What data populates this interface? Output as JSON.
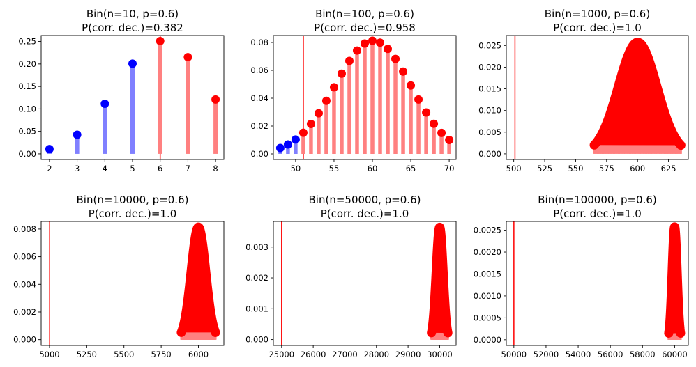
{
  "chart_data": [
    {
      "type": "scatter",
      "title": [
        "Bin(n=10, p=0.6)",
        "P(corr. dec.)=0.382"
      ],
      "n": 10,
      "p": 0.6,
      "threshold": 6,
      "point_range": [
        2,
        8
      ],
      "x_ticks": [
        2,
        3,
        4,
        5,
        6,
        7,
        8
      ],
      "y_ticks": [
        0.0,
        0.05,
        0.1,
        0.15,
        0.2,
        0.25
      ],
      "x_tick_labels": [
        "2",
        "3",
        "4",
        "5",
        "6",
        "7",
        "8"
      ],
      "y_tick_labels": [
        "0.00",
        "0.05",
        "0.10",
        "0.15",
        "0.20",
        "0.25"
      ],
      "xlim": [
        1.7,
        8.3
      ],
      "ylim": [
        -0.0125,
        0.2633
      ],
      "style": "points"
    },
    {
      "type": "scatter",
      "title": [
        "Bin(n=100, p=0.6)",
        "P(corr. dec.)=0.958"
      ],
      "n": 100,
      "p": 0.6,
      "threshold": 51,
      "point_range": [
        48,
        70
      ],
      "x_ticks": [
        50,
        55,
        60,
        65,
        70
      ],
      "y_ticks": [
        0.0,
        0.02,
        0.04,
        0.06,
        0.08
      ],
      "x_tick_labels": [
        "50",
        "55",
        "60",
        "65",
        "70"
      ],
      "y_tick_labels": [
        "0.00",
        "0.02",
        "0.04",
        "0.06",
        "0.08"
      ],
      "xlim": [
        47.1,
        70.9
      ],
      "ylim": [
        -0.004,
        0.085
      ],
      "style": "points"
    },
    {
      "type": "area",
      "title": [
        "Bin(n=1000, p=0.6)",
        "P(corr. dec.)=1.0"
      ],
      "n": 1000,
      "p": 0.6,
      "threshold": 501,
      "point_range": [
        565,
        635
      ],
      "x_ticks": [
        500,
        525,
        550,
        575,
        600,
        625
      ],
      "y_ticks": [
        0.0,
        0.005,
        0.01,
        0.015,
        0.02,
        0.025
      ],
      "x_tick_labels": [
        "500",
        "525",
        "550",
        "575",
        "600",
        "625"
      ],
      "y_tick_labels": [
        "0.000",
        "0.005",
        "0.010",
        "0.015",
        "0.020",
        "0.025"
      ],
      "xlim": [
        494,
        641
      ],
      "ylim": [
        -0.0013,
        0.0273
      ],
      "style": "blob"
    },
    {
      "type": "area",
      "title": [
        "Bin(n=10000, p=0.6)",
        "P(corr. dec.)=1.0"
      ],
      "n": 10000,
      "p": 0.6,
      "threshold": 5001,
      "point_range": [
        5885,
        6115
      ],
      "x_ticks": [
        5000,
        5250,
        5500,
        5750,
        6000
      ],
      "y_ticks": [
        0.0,
        0.002,
        0.004,
        0.006,
        0.008
      ],
      "x_tick_labels": [
        "5000",
        "5250",
        "5500",
        "5750",
        "6000"
      ],
      "y_tick_labels": [
        "0.000",
        "0.002",
        "0.004",
        "0.006",
        "0.008"
      ],
      "xlim": [
        4944,
        6171
      ],
      "ylim": [
        -0.00042,
        0.00855
      ],
      "style": "blob"
    },
    {
      "type": "area",
      "title": [
        "Bin(n=50000, p=0.6)",
        "P(corr. dec.)=1.0"
      ],
      "n": 50000,
      "p": 0.6,
      "threshold": 25001,
      "point_range": [
        29740,
        30260
      ],
      "x_ticks": [
        25000,
        26000,
        27000,
        28000,
        29000,
        30000
      ],
      "y_ticks": [
        0.0,
        0.001,
        0.002,
        0.003
      ],
      "x_tick_labels": [
        "25000",
        "26000",
        "27000",
        "28000",
        "29000",
        "30000"
      ],
      "y_tick_labels": [
        "0.000",
        "0.001",
        "0.002",
        "0.003"
      ],
      "xlim": [
        24740,
        30520
      ],
      "ylim": [
        -0.00019,
        0.00383
      ],
      "style": "blob"
    },
    {
      "type": "area",
      "title": [
        "Bin(n=100000, p=0.6)",
        "P(corr. dec.)=1.0"
      ],
      "n": 100000,
      "p": 0.6,
      "threshold": 50001,
      "point_range": [
        59630,
        60370
      ],
      "x_ticks": [
        50000,
        52000,
        54000,
        56000,
        58000,
        60000
      ],
      "y_ticks": [
        0.0,
        0.0005,
        0.001,
        0.0015,
        0.002,
        0.0025
      ],
      "x_tick_labels": [
        "50000",
        "52000",
        "54000",
        "56000",
        "58000",
        "60000"
      ],
      "y_tick_labels": [
        "0.0000",
        "0.0005",
        "0.0010",
        "0.0015",
        "0.0020",
        "0.0025"
      ],
      "xlim": [
        49530,
        60850
      ],
      "ylim": [
        -0.00013,
        0.0027
      ],
      "style": "blob"
    }
  ],
  "colors": {
    "below_threshold_marker": "#0000ff",
    "below_threshold_stem": "#8080ff",
    "above_threshold_marker": "#ff0000",
    "above_threshold_stem": "#ff8080",
    "threshold_line": "#ff0000"
  }
}
